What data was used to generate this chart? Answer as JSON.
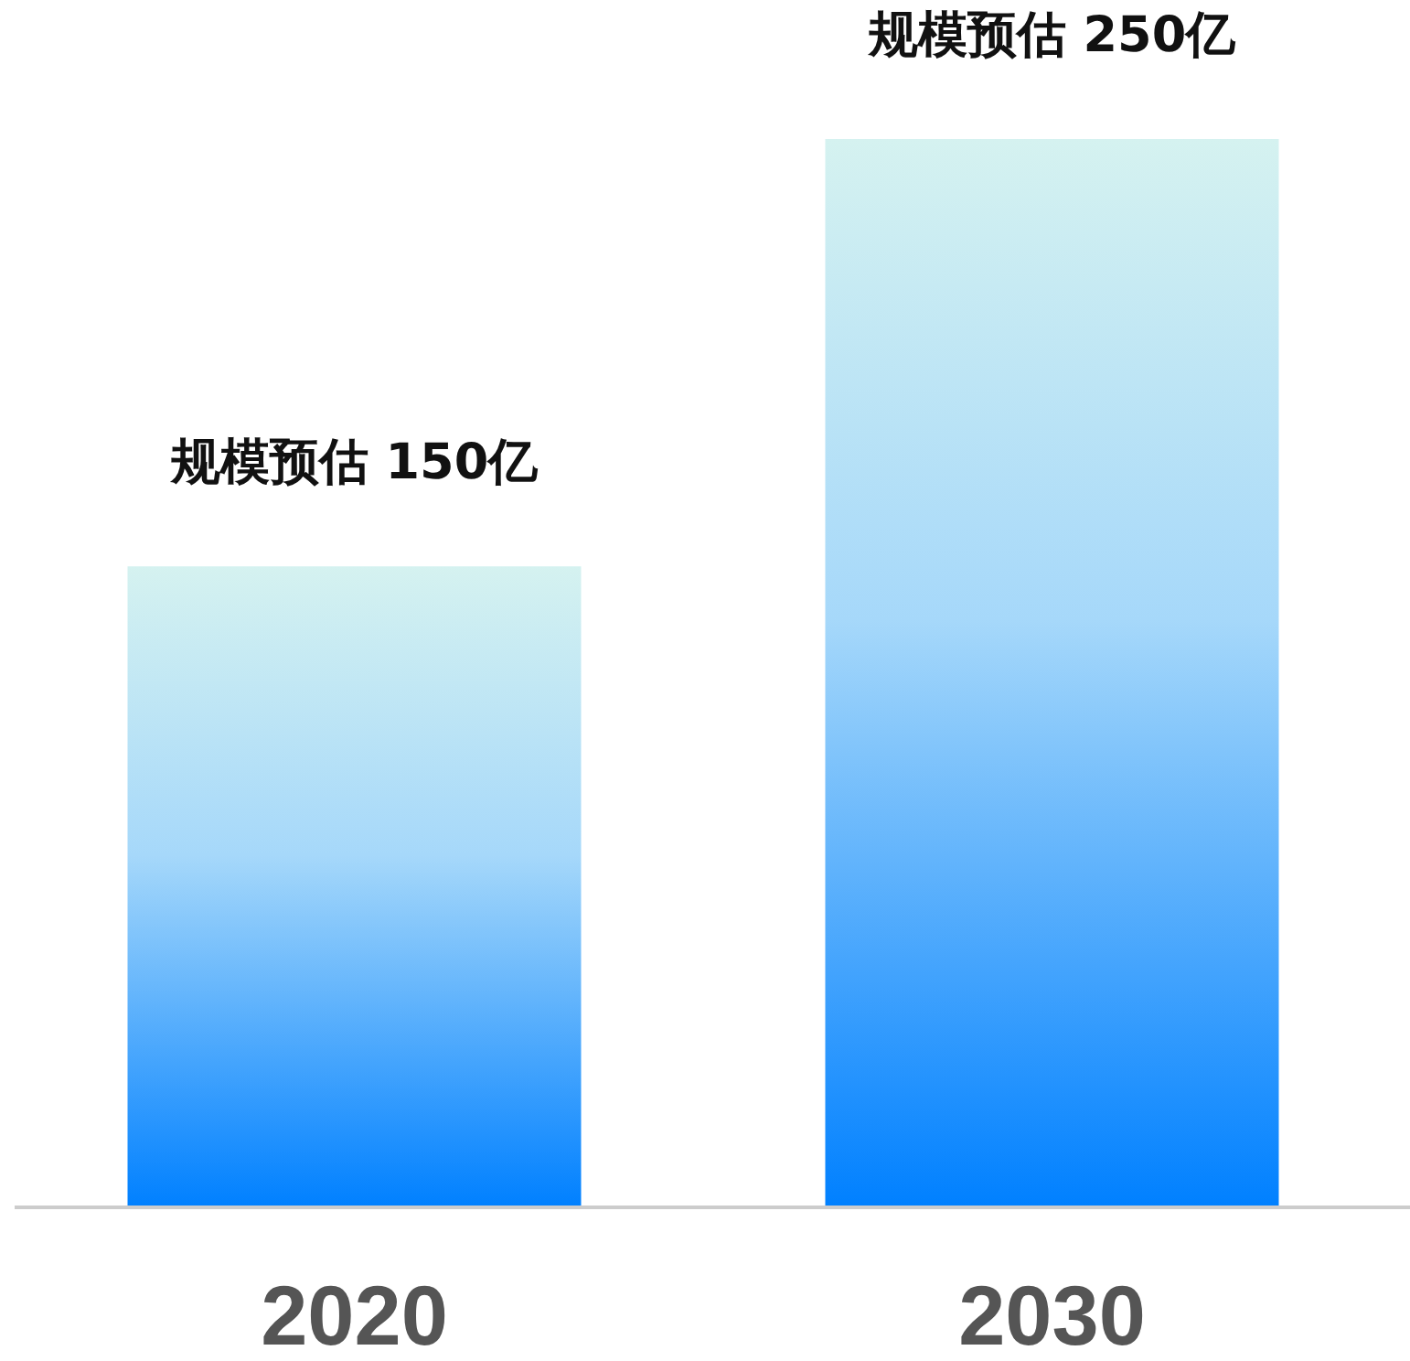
{
  "chart_data": {
    "type": "bar",
    "categories": [
      "2020",
      "2030"
    ],
    "values": [
      150,
      250
    ],
    "value_labels": [
      "规模预估 150亿",
      "规模预估 250亿"
    ],
    "color": "#0080ff"
  }
}
